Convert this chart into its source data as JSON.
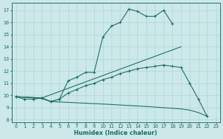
{
  "xlabel": "Humidex (Indice chaleur)",
  "xlim": [
    -0.5,
    23.5
  ],
  "ylim": [
    7.8,
    17.6
  ],
  "yticks": [
    8,
    9,
    10,
    11,
    12,
    13,
    14,
    15,
    16,
    17
  ],
  "xticks": [
    0,
    1,
    2,
    3,
    4,
    5,
    6,
    7,
    8,
    9,
    10,
    11,
    12,
    13,
    14,
    15,
    16,
    17,
    18,
    19,
    20,
    21,
    22,
    23
  ],
  "bg_color": "#cce8e8",
  "line_color": "#1a6b60",
  "grid_color": "#b0d8d8",
  "line1": {
    "x": [
      0,
      1,
      2,
      3,
      4,
      5,
      6,
      7,
      8,
      9,
      10,
      11,
      12,
      13,
      14,
      15,
      16,
      17,
      18
    ],
    "y": [
      9.9,
      9.7,
      9.7,
      9.8,
      9.5,
      9.7,
      11.2,
      11.5,
      11.9,
      11.9,
      14.8,
      15.7,
      16.0,
      17.1,
      16.9,
      16.5,
      16.5,
      17.0,
      15.9
    ]
  },
  "line2": {
    "x": [
      0,
      3,
      19
    ],
    "y": [
      9.9,
      9.8,
      14.0
    ]
  },
  "line3": {
    "x": [
      0,
      3,
      4,
      5,
      6,
      7,
      8,
      9,
      10,
      11,
      12,
      13,
      14,
      15,
      16,
      17,
      18,
      19,
      20,
      21,
      22
    ],
    "y": [
      9.9,
      9.8,
      9.5,
      9.7,
      10.2,
      10.5,
      10.8,
      11.0,
      11.3,
      11.5,
      11.8,
      12.0,
      12.2,
      12.3,
      12.4,
      12.5,
      12.4,
      12.3,
      11.0,
      9.7,
      8.3
    ]
  },
  "line4": {
    "x": [
      0,
      3,
      4,
      10,
      15,
      19,
      20,
      21,
      22
    ],
    "y": [
      9.9,
      9.75,
      9.5,
      9.3,
      9.1,
      8.9,
      8.8,
      8.6,
      8.3
    ]
  }
}
